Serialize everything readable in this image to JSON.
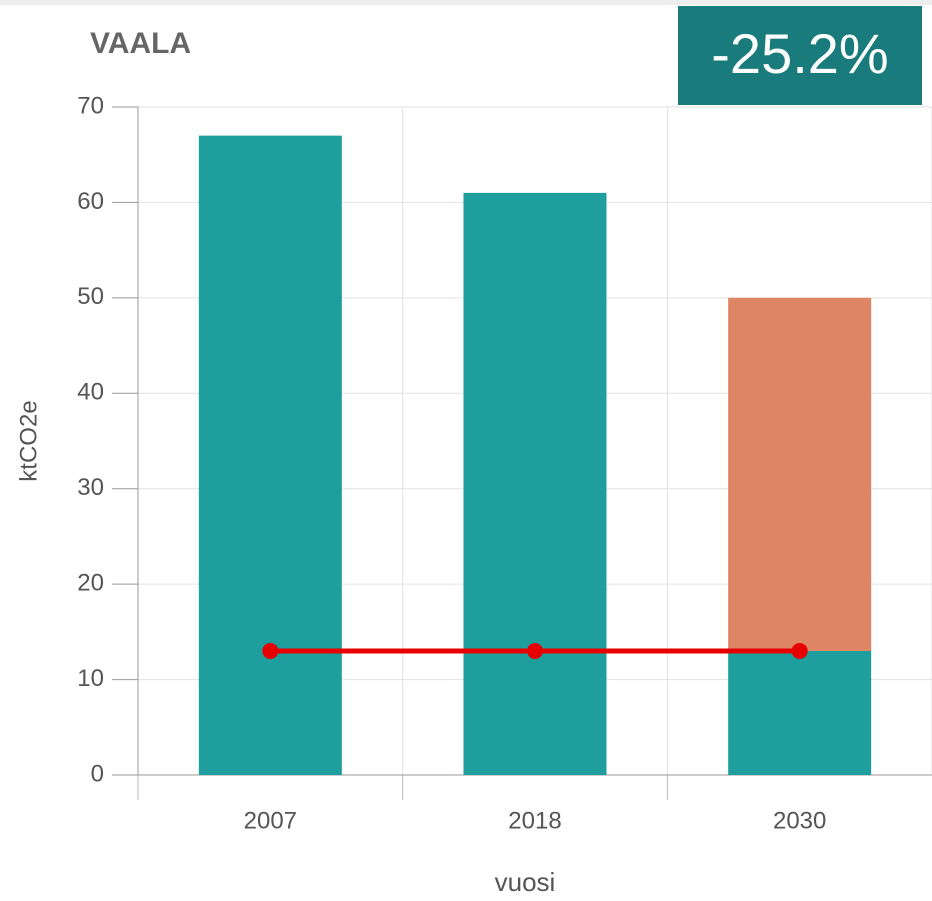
{
  "chart_data": {
    "type": "bar",
    "stacked": true,
    "title": "VAALA",
    "annotation": "-25.2%",
    "xlabel": "vuosi",
    "ylabel": "ktCO2e",
    "categories": [
      "2007",
      "2018",
      "2030"
    ],
    "series": [
      {
        "color": "#1f9e9e",
        "values": [
          67,
          61,
          13
        ]
      },
      {
        "color": "#de8563",
        "values": [
          null,
          null,
          37
        ]
      },
      {
        "type": "line",
        "color": "#e60000",
        "values": [
          13,
          13,
          13
        ]
      }
    ],
    "ylim": [
      0,
      70
    ],
    "yticks": [
      0,
      10,
      20,
      30,
      40,
      50,
      60,
      70
    ],
    "grid": true
  }
}
